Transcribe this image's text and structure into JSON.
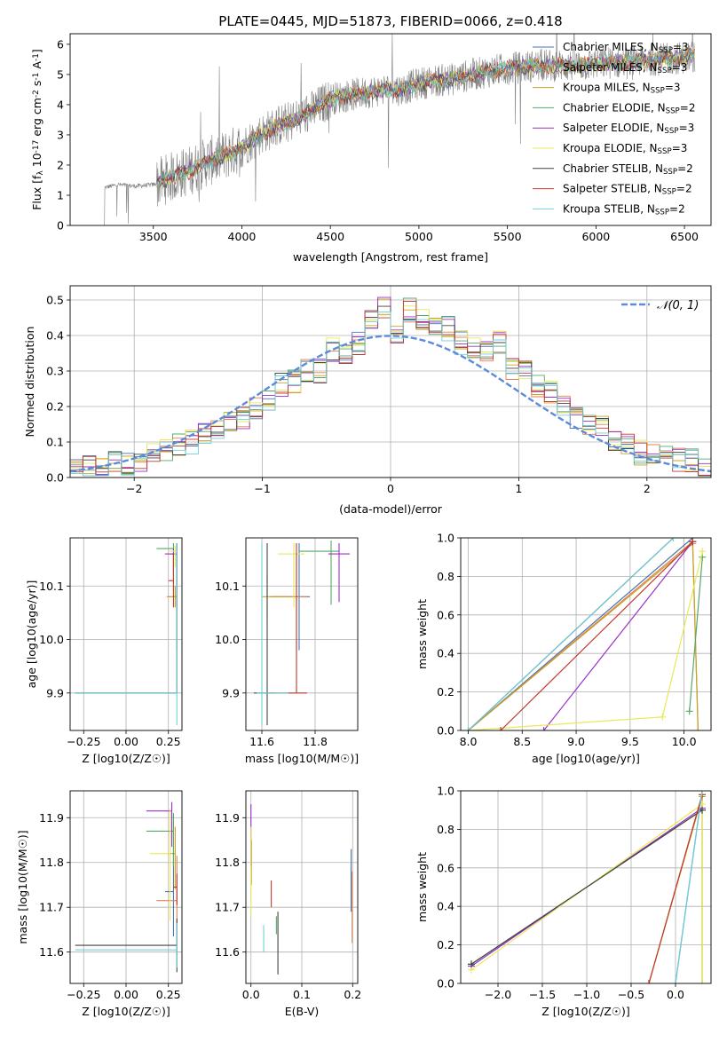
{
  "figure_title": "PLATE=0445, MJD=51873, FIBERID=0066, z=0.418",
  "series_names": [
    "Chabrier MILES, N_SSP=3",
    "Salpeter MILES, N_SSP=3",
    "Kroupa MILES, N_SSP=3",
    "Chabrier ELODIE, N_SSP=2",
    "Salpeter ELODIE, N_SSP=3",
    "Kroupa ELODIE, N_SSP=3",
    "Chabrier STELIB, N_SSP=2",
    "Salpeter STELIB, N_SSP=2",
    "Kroupa STELIB, N_SSP=2"
  ],
  "series_colors": [
    "#4c72b0",
    "#dd8452",
    "#c9a227",
    "#55a868",
    "#9b30c8",
    "#e8e85a",
    "#444444",
    "#c0392b",
    "#6fcfd6"
  ],
  "chart_data": [
    {
      "id": "spectrum",
      "type": "line",
      "title": "PLATE=0445, MJD=51873, FIBERID=0066, z=0.418",
      "xlabel": "wavelength [Angstrom, rest frame]",
      "ylabel": "Flux [f_λ 10^-17 erg cm^-2 s^-1 A^-1]",
      "xlim": [
        3030,
        6650
      ],
      "ylim": [
        0,
        6.35
      ],
      "xticks": [
        3500,
        4000,
        4500,
        5000,
        5500,
        6000,
        6500
      ],
      "yticks": [
        0,
        1,
        2,
        3,
        4,
        5,
        6
      ],
      "grid": false,
      "legend_placement": "upper-right",
      "data_color": "#808080",
      "continuum_anchors": {
        "wavelength": [
          3220,
          3300,
          3400,
          3500,
          3600,
          3700,
          3800,
          3900,
          4000,
          4100,
          4200,
          4300,
          4400,
          4500,
          4600,
          4700,
          4800,
          4900,
          5000,
          5100,
          5200,
          5300,
          5400,
          5500,
          5600,
          5700,
          5800,
          5900,
          6000,
          6100,
          6200,
          6300,
          6400,
          6550
        ],
        "flux": [
          1.25,
          1.35,
          1.3,
          1.35,
          1.6,
          1.8,
          2.1,
          2.3,
          2.6,
          3.0,
          3.3,
          3.5,
          3.8,
          4.2,
          4.3,
          4.4,
          4.5,
          4.5,
          4.7,
          4.8,
          4.85,
          5.0,
          5.1,
          5.2,
          5.25,
          5.3,
          5.3,
          5.3,
          5.35,
          5.4,
          5.4,
          5.5,
          5.5,
          5.6
        ]
      }
    },
    {
      "id": "residuals",
      "type": "histogram",
      "xlabel": "(data-model)/error",
      "ylabel": "Normed distribution",
      "xlim": [
        -2.5,
        2.5
      ],
      "ylim": [
        0,
        0.54
      ],
      "xticks": [
        -2,
        -1,
        0,
        1,
        2
      ],
      "yticks": [
        0.0,
        0.1,
        0.2,
        0.3,
        0.4,
        0.5
      ],
      "grid": true,
      "legend_placement": "upper-right",
      "reference_curve": {
        "name": "𝒩(0, 1)",
        "mean": 0,
        "sigma": 1,
        "color": "#5b8bd9"
      },
      "bin_edges": [
        -2.5,
        -2.4,
        -2.3,
        -2.2,
        -2.1,
        -2.0,
        -1.9,
        -1.8,
        -1.7,
        -1.6,
        -1.5,
        -1.4,
        -1.3,
        -1.2,
        -1.1,
        -1.0,
        -0.9,
        -0.8,
        -0.7,
        -0.6,
        -0.5,
        -0.4,
        -0.3,
        -0.2,
        -0.1,
        0.0,
        0.1,
        0.2,
        0.3,
        0.4,
        0.5,
        0.6,
        0.7,
        0.8,
        0.9,
        1.0,
        1.1,
        1.2,
        1.3,
        1.4,
        1.5,
        1.6,
        1.7,
        1.8,
        1.9,
        2.0,
        2.1,
        2.2,
        2.3,
        2.4,
        2.5
      ],
      "base_heights": [
        0.02,
        0.03,
        0.03,
        0.05,
        0.04,
        0.05,
        0.07,
        0.08,
        0.09,
        0.1,
        0.13,
        0.14,
        0.15,
        0.17,
        0.2,
        0.22,
        0.26,
        0.27,
        0.3,
        0.3,
        0.36,
        0.35,
        0.38,
        0.44,
        0.48,
        0.4,
        0.47,
        0.44,
        0.42,
        0.42,
        0.38,
        0.36,
        0.36,
        0.38,
        0.3,
        0.31,
        0.26,
        0.24,
        0.2,
        0.17,
        0.14,
        0.14,
        0.1,
        0.09,
        0.07,
        0.06,
        0.06,
        0.05,
        0.05,
        0.03
      ]
    },
    {
      "id": "age-vs-Z",
      "type": "errorbar",
      "xlabel": "Z [log10(Z/Z☉)]",
      "ylabel": "age  [log10(age/yr)]",
      "xlim": [
        -0.33,
        0.33
      ],
      "ylim": [
        9.83,
        10.19
      ],
      "xticks": [
        -0.25,
        0.0,
        0.25
      ],
      "yticks": [
        9.9,
        10.0,
        10.1
      ],
      "grid": true,
      "points": [
        {
          "s": 0,
          "x": 0.3,
          "y": 10.16,
          "xerr": [
            0.04,
            0.0
          ],
          "yerr": [
            0.1,
            0.02
          ]
        },
        {
          "s": 1,
          "x": 0.3,
          "y": 10.08,
          "xerr": [
            0.06,
            0.0
          ],
          "yerr": [
            0.1,
            0.02
          ]
        },
        {
          "s": 2,
          "x": 0.29,
          "y": 10.08,
          "xerr": [
            0.04,
            0.0
          ],
          "yerr": [
            0.02,
            0.02
          ]
        },
        {
          "s": 3,
          "x": 0.28,
          "y": 10.17,
          "xerr": [
            0.1,
            0.0
          ],
          "yerr": [
            0.08,
            0.01
          ]
        },
        {
          "s": 4,
          "x": 0.28,
          "y": 10.16,
          "xerr": [
            0.05,
            0.0
          ],
          "yerr": [
            0.04,
            0.01
          ]
        },
        {
          "s": 5,
          "x": 0.29,
          "y": 10.165,
          "xerr": [
            0.04,
            0.0
          ],
          "yerr": [
            0.03,
            0.01
          ]
        },
        {
          "s": 6,
          "x": 0.3,
          "y": 9.9,
          "xerr": [
            0.6,
            0.0
          ],
          "yerr": [
            0.0,
            0.28
          ]
        },
        {
          "s": 7,
          "x": 0.28,
          "y": 10.11,
          "xerr": [
            0.03,
            0.0
          ],
          "yerr": [
            0.05,
            0.05
          ]
        },
        {
          "s": 8,
          "x": 0.3,
          "y": 9.9,
          "xerr": [
            0.6,
            0.0
          ],
          "yerr": [
            0.06,
            0.28
          ]
        }
      ]
    },
    {
      "id": "age-vs-mass",
      "type": "errorbar",
      "xlabel": "mass [log10(M/M☉)]",
      "ylabel": "",
      "xlim": [
        11.54,
        11.96
      ],
      "ylim": [
        9.83,
        10.19
      ],
      "xticks": [
        11.6,
        11.8
      ],
      "yticks": [
        9.9,
        10.0,
        10.1
      ],
      "grid": true,
      "points": [
        {
          "s": 0,
          "x": 11.74,
          "y": 10.08,
          "xerr": [
            0.1,
            0.04
          ],
          "yerr": [
            0.1,
            0.1
          ]
        },
        {
          "s": 1,
          "x": 11.73,
          "y": 10.08,
          "xerr": [
            0.1,
            0.04
          ],
          "yerr": [
            0.1,
            0.08
          ]
        },
        {
          "s": 2,
          "x": 11.62,
          "y": 10.08,
          "xerr": [
            0.02,
            0.1
          ],
          "yerr": [
            0.04,
            0.04
          ]
        },
        {
          "s": 3,
          "x": 11.86,
          "y": 10.165,
          "xerr": [
            0.12,
            0.03
          ],
          "yerr": [
            0.1,
            0.02
          ]
        },
        {
          "s": 4,
          "x": 11.89,
          "y": 10.16,
          "xerr": [
            0.04,
            0.04
          ],
          "yerr": [
            0.09,
            0.02
          ]
        },
        {
          "s": 5,
          "x": 11.72,
          "y": 10.16,
          "xerr": [
            0.06,
            0.04
          ],
          "yerr": [
            0.1,
            0.02
          ]
        },
        {
          "s": 6,
          "x": 11.62,
          "y": 9.9,
          "xerr": [
            0.05,
            0.03
          ],
          "yerr": [
            0.06,
            0.28
          ]
        },
        {
          "s": 7,
          "x": 11.73,
          "y": 9.9,
          "xerr": [
            0.1,
            0.04
          ],
          "yerr": [
            0.0,
            0.28
          ]
        },
        {
          "s": 8,
          "x": 11.6,
          "y": 9.9,
          "xerr": [
            0.02,
            0.1
          ],
          "yerr": [
            0.06,
            0.28
          ]
        }
      ]
    },
    {
      "id": "massweight-vs-age",
      "type": "line",
      "xlabel": "age  [log10(age/yr)]",
      "ylabel": "mass weight",
      "xlim": [
        7.93,
        10.25
      ],
      "ylim": [
        0,
        1.0
      ],
      "xticks": [
        8.0,
        8.5,
        9.0,
        9.5,
        10.0
      ],
      "yticks": [
        0.0,
        0.2,
        0.4,
        0.6,
        0.8,
        1.0
      ],
      "grid": true,
      "series": [
        {
          "s": 0,
          "x": [
            8.0,
            10.08
          ],
          "y": [
            0.0,
            1.0
          ]
        },
        {
          "s": 1,
          "x": [
            8.0,
            10.08,
            10.13
          ],
          "y": [
            0.0,
            0.98,
            0.0
          ]
        },
        {
          "s": 2,
          "x": [
            8.0,
            10.08,
            10.13
          ],
          "y": [
            0.0,
            0.97,
            0.0
          ]
        },
        {
          "s": 3,
          "x": [
            10.05,
            10.17
          ],
          "y": [
            0.1,
            0.9
          ]
        },
        {
          "s": 4,
          "x": [
            8.7,
            10.08
          ],
          "y": [
            0.0,
            0.98
          ]
        },
        {
          "s": 5,
          "x": [
            8.0,
            9.8,
            10.17
          ],
          "y": [
            0.0,
            0.07,
            0.93
          ]
        },
        {
          "s": 6,
          "x": [
            8.0,
            9.9
          ],
          "y": [
            0.0,
            1.0
          ]
        },
        {
          "s": 7,
          "x": [
            8.3,
            10.08
          ],
          "y": [
            0.0,
            0.98
          ]
        },
        {
          "s": 8,
          "x": [
            8.0,
            9.9
          ],
          "y": [
            0.0,
            1.0
          ]
        }
      ]
    },
    {
      "id": "mass-vs-Z",
      "type": "errorbar",
      "xlabel": "Z [log10(Z/Z☉)]",
      "ylabel": "mass [log10(M/M☉)]",
      "xlim": [
        -0.33,
        0.33
      ],
      "ylim": [
        11.53,
        11.96
      ],
      "xticks": [
        -0.25,
        0.0,
        0.25
      ],
      "yticks": [
        11.6,
        11.7,
        11.8,
        11.9
      ],
      "grid": true,
      "points": [
        {
          "s": 0,
          "x": 0.28,
          "y": 11.735,
          "xerr": [
            0.05,
            0.0
          ],
          "yerr": [
            0.1,
            0.1
          ]
        },
        {
          "s": 1,
          "x": 0.3,
          "y": 11.715,
          "xerr": [
            0.12,
            0.0
          ],
          "yerr": [
            0.1,
            0.1
          ]
        },
        {
          "s": 2,
          "x": 0.29,
          "y": 11.82,
          "xerr": [
            0.05,
            0.0
          ],
          "yerr": [
            0.08,
            0.06
          ]
        },
        {
          "s": 3,
          "x": 0.28,
          "y": 11.87,
          "xerr": [
            0.16,
            0.0
          ],
          "yerr": [
            0.08,
            0.04
          ]
        },
        {
          "s": 4,
          "x": 0.27,
          "y": 11.915,
          "xerr": [
            0.15,
            0.0
          ],
          "yerr": [
            0.08,
            0.02
          ]
        },
        {
          "s": 5,
          "x": 0.26,
          "y": 11.82,
          "xerr": [
            0.12,
            0.0
          ],
          "yerr": [
            0.15,
            0.1
          ]
        },
        {
          "s": 6,
          "x": 0.3,
          "y": 11.615,
          "xerr": [
            0.6,
            0.0
          ],
          "yerr": [
            0.06,
            0.06
          ]
        },
        {
          "s": 7,
          "x": 0.3,
          "y": 11.745,
          "xerr": [
            0.02,
            0.0
          ],
          "yerr": [
            0.04,
            0.03
          ]
        },
        {
          "s": 8,
          "x": 0.3,
          "y": 11.605,
          "xerr": [
            0.6,
            0.0
          ],
          "yerr": [
            0.04,
            0.06
          ]
        }
      ]
    },
    {
      "id": "mass-vs-ebv",
      "type": "errorbar",
      "xlabel": "E(B-V)",
      "ylabel": "",
      "xlim": [
        -0.01,
        0.21
      ],
      "ylim": [
        11.53,
        11.96
      ],
      "xticks": [
        0.0,
        0.1,
        0.2
      ],
      "yticks": [
        11.6,
        11.7,
        11.8,
        11.9
      ],
      "grid": true,
      "points": [
        {
          "s": 0,
          "x": 0.197,
          "y": 11.76,
          "xerr": [
            0,
            0
          ],
          "yerr": [
            0.07,
            0.07
          ]
        },
        {
          "s": 1,
          "x": 0.199,
          "y": 11.7,
          "xerr": [
            0,
            0
          ],
          "yerr": [
            0.08,
            0.08
          ]
        },
        {
          "s": 2,
          "x": 0.001,
          "y": 11.8,
          "xerr": [
            0,
            0
          ],
          "yerr": [
            0.05,
            0.05
          ]
        },
        {
          "s": 3,
          "x": 0.05,
          "y": 11.66,
          "xerr": [
            0,
            0
          ],
          "yerr": [
            0.02,
            0.02
          ]
        },
        {
          "s": 4,
          "x": 0.0,
          "y": 11.86,
          "xerr": [
            0,
            0
          ],
          "yerr": [
            0.07,
            0.07
          ]
        },
        {
          "s": 5,
          "x": 0.0,
          "y": 11.78,
          "xerr": [
            0,
            0
          ],
          "yerr": [
            0.1,
            0.1
          ]
        },
        {
          "s": 6,
          "x": 0.053,
          "y": 11.62,
          "xerr": [
            0,
            0
          ],
          "yerr": [
            0.07,
            0.07
          ]
        },
        {
          "s": 7,
          "x": 0.04,
          "y": 11.73,
          "xerr": [
            0,
            0
          ],
          "yerr": [
            0.03,
            0.03
          ]
        },
        {
          "s": 8,
          "x": 0.025,
          "y": 11.63,
          "xerr": [
            0,
            0
          ],
          "yerr": [
            0.03,
            0.03
          ]
        }
      ]
    },
    {
      "id": "massweight-vs-Z",
      "type": "line",
      "xlabel": "Z [log10(Z/Z☉)]",
      "ylabel": "mass weight",
      "xlim": [
        -2.42,
        0.4
      ],
      "ylim": [
        0,
        1.0
      ],
      "xticks": [
        -2.0,
        -1.5,
        -1.0,
        -0.5,
        0.0
      ],
      "yticks": [
        0.0,
        0.2,
        0.4,
        0.6,
        0.8,
        1.0
      ],
      "grid": true,
      "series": [
        {
          "s": 0,
          "x": [
            0.0,
            0.3
          ],
          "y": [
            0.0,
            1.0
          ]
        },
        {
          "s": 1,
          "x": [
            -0.3,
            0.3,
            0.3
          ],
          "y": [
            0.0,
            0.98,
            0.0
          ]
        },
        {
          "s": 2,
          "x": [
            -0.3,
            0.3,
            0.3
          ],
          "y": [
            0.0,
            0.97,
            0.0
          ]
        },
        {
          "s": 3,
          "x": [
            -2.3,
            0.3
          ],
          "y": [
            0.1,
            0.9
          ]
        },
        {
          "s": 4,
          "x": [
            -2.3,
            0.3
          ],
          "y": [
            0.09,
            0.91
          ]
        },
        {
          "s": 5,
          "x": [
            -2.3,
            0.3,
            0.3
          ],
          "y": [
            0.07,
            0.93,
            0.0
          ]
        },
        {
          "s": 6,
          "x": [
            -2.3,
            0.3
          ],
          "y": [
            0.1,
            0.9
          ]
        },
        {
          "s": 7,
          "x": [
            -0.3,
            0.3
          ],
          "y": [
            0.0,
            0.98
          ]
        },
        {
          "s": 8,
          "x": [
            0.0,
            0.3
          ],
          "y": [
            0.0,
            1.0
          ]
        }
      ]
    }
  ]
}
